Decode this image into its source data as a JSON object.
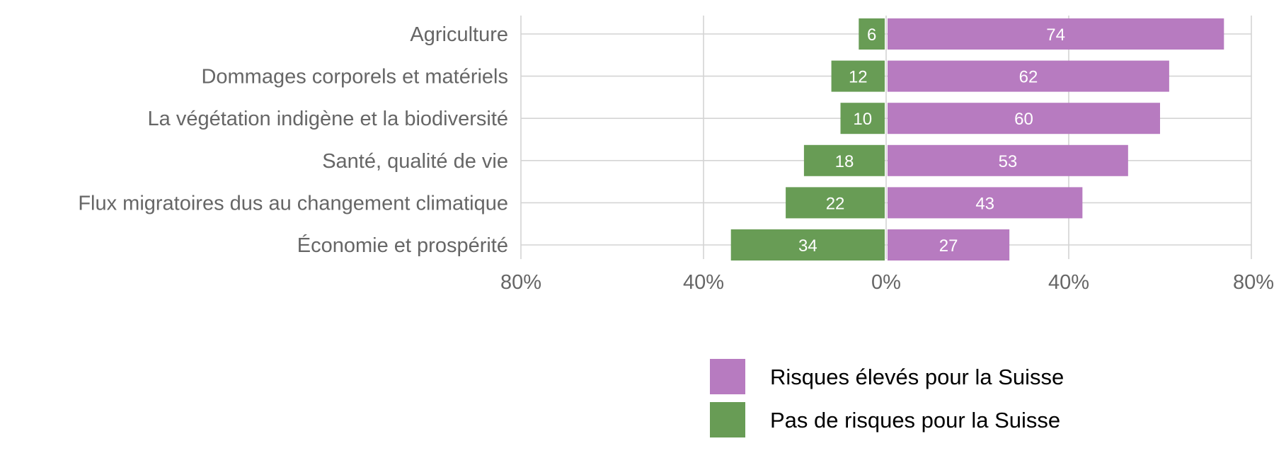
{
  "chart_data": {
    "type": "bar",
    "orientation": "horizontal-diverging",
    "categories": [
      "Agriculture",
      "Dommages corporels et matériels",
      "La végétation indigène et la biodiversité",
      "Santé, qualité de vie",
      "Flux migratoires dus au changement climatique",
      "Économie et prospérité"
    ],
    "series": [
      {
        "name": "Risques élevés pour la Suisse",
        "color": "#b77bc0",
        "direction": "right",
        "values": [
          74,
          62,
          60,
          53,
          43,
          27
        ]
      },
      {
        "name": "Pas de risques pour la Suisse",
        "color": "#689c55",
        "direction": "left",
        "values": [
          6,
          12,
          10,
          18,
          22,
          34
        ]
      }
    ],
    "xlim": [
      -80,
      80
    ],
    "xticks": [
      {
        "value": -80,
        "label": "80%"
      },
      {
        "value": -40,
        "label": "40%"
      },
      {
        "value": 0,
        "label": "0%"
      },
      {
        "value": 40,
        "label": "40%"
      },
      {
        "value": 80,
        "label": "80%"
      }
    ],
    "grid": true,
    "legend_position": "bottom"
  }
}
